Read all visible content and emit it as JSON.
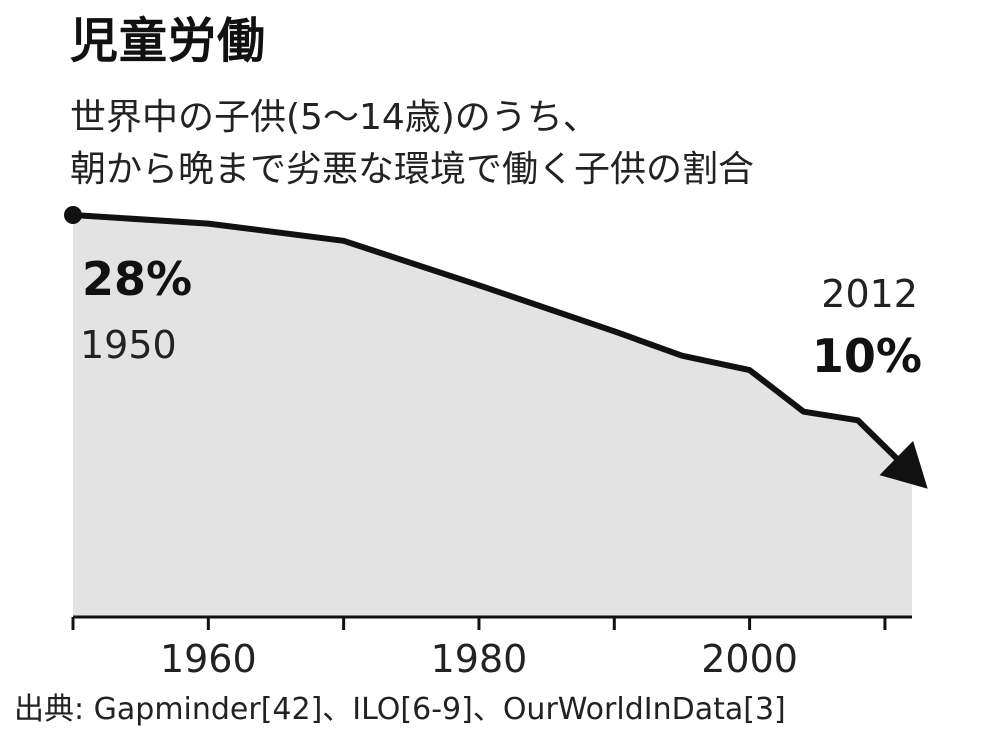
{
  "title": "児童労働",
  "subtitle_lines": [
    "世界中の子供(5～14歳)のうち、",
    "朝から晩まで劣悪な環境で働く子供の割合"
  ],
  "source": "出典: Gapminder[42]、ILO[6-9]、OurWorldInData[3]",
  "annotations": {
    "start_value": "28%",
    "start_year": "1950",
    "end_year": "2012",
    "end_value": "10%"
  },
  "colors": {
    "line": "#111111",
    "area": "#e3e3e3",
    "text": "#111111"
  },
  "chart_data": {
    "type": "area",
    "title": "児童労働",
    "subtitle": "世界中の子供(5～14歳)のうち、朝から晩まで劣悪な環境で働く子供の割合",
    "xlabel": "",
    "ylabel": "",
    "x": [
      1950,
      1960,
      1970,
      1980,
      1990,
      1995,
      2000,
      2004,
      2008,
      2012
    ],
    "y": [
      28,
      27.4,
      26.2,
      23.1,
      19.9,
      18.2,
      17.2,
      14.3,
      13.7,
      10
    ],
    "xlim": [
      1950,
      2012
    ],
    "ylim": [
      0,
      28
    ],
    "x_ticks": [
      1950,
      1960,
      1970,
      1980,
      1990,
      2000,
      2010
    ],
    "x_tick_labels": [
      "1960",
      "1980",
      "2000"
    ],
    "x_tick_label_values": [
      1960,
      1980,
      2000
    ],
    "grid": false,
    "legend": "none",
    "end_marker": "arrow"
  }
}
